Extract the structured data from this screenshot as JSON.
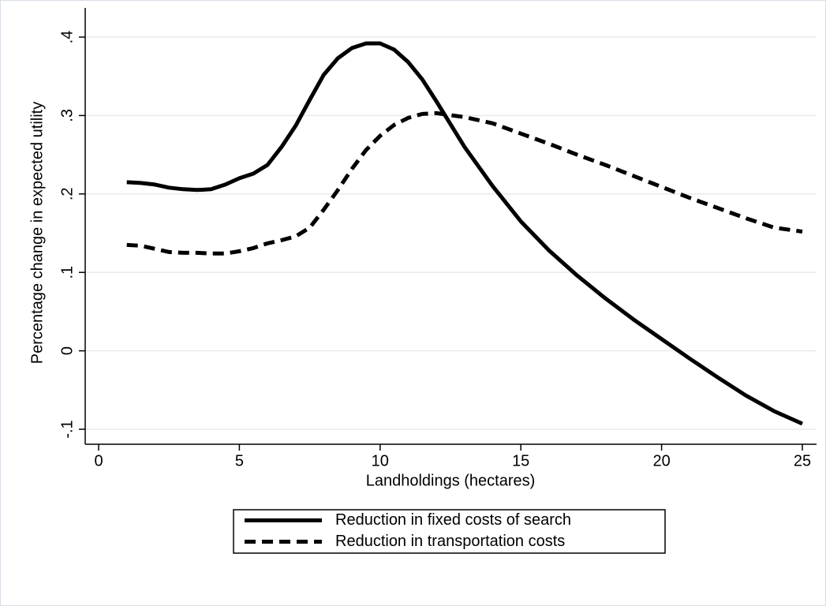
{
  "chart_data": {
    "type": "line",
    "x_label": "Landholdings (hectares)",
    "y_label": "Percentage change in expected utility",
    "x": [
      1,
      1.5,
      2,
      2.5,
      3,
      3.5,
      4,
      4.5,
      5,
      5.5,
      6,
      6.5,
      7,
      7.5,
      8,
      8.5,
      9,
      9.5,
      10,
      10.5,
      11,
      11.5,
      12,
      13,
      14,
      15,
      16,
      17,
      18,
      19,
      20,
      21,
      22,
      23,
      24,
      25
    ],
    "series": [
      {
        "name": "Reduction in fixed costs of search",
        "color": "#000000",
        "dash": "solid",
        "values": [
          0.215,
          0.214,
          0.212,
          0.208,
          0.206,
          0.205,
          0.206,
          0.212,
          0.22,
          0.226,
          0.237,
          0.26,
          0.287,
          0.32,
          0.352,
          0.373,
          0.386,
          0.392,
          0.392,
          0.384,
          0.368,
          0.346,
          0.318,
          0.26,
          0.21,
          0.165,
          0.128,
          0.096,
          0.067,
          0.04,
          0.015,
          -0.01,
          -0.034,
          -0.057,
          -0.077,
          -0.093
        ]
      },
      {
        "name": "Reduction in transportation costs",
        "color": "#000000",
        "dash": "dashed",
        "values": [
          0.135,
          0.134,
          0.13,
          0.126,
          0.125,
          0.125,
          0.124,
          0.124,
          0.127,
          0.131,
          0.137,
          0.141,
          0.146,
          0.157,
          0.18,
          0.205,
          0.232,
          0.256,
          0.274,
          0.288,
          0.297,
          0.302,
          0.303,
          0.298,
          0.29,
          0.277,
          0.264,
          0.25,
          0.237,
          0.223,
          0.209,
          0.195,
          0.182,
          0.169,
          0.157,
          0.152
        ]
      }
    ],
    "xlim": [
      0,
      25
    ],
    "xticks": [
      0,
      5,
      10,
      15,
      20,
      25
    ],
    "ylim": [
      -0.1,
      0.4
    ],
    "yticks": [
      {
        "value": -0.1,
        "label": "-.1"
      },
      {
        "value": 0,
        "label": "0"
      },
      {
        "value": 0.1,
        "label": ".1"
      },
      {
        "value": 0.2,
        "label": ".2"
      },
      {
        "value": 0.3,
        "label": ".3"
      },
      {
        "value": 0.4,
        "label": ".4"
      }
    ],
    "grid": true,
    "legend": "bottom"
  }
}
